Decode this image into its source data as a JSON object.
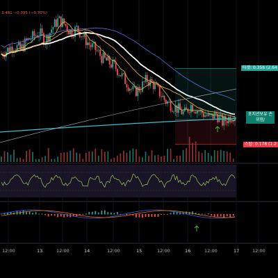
{
  "header": {
    "price_change": "3.481  −0.095 (−0.70%)"
  },
  "labels": {
    "target": "타겟: 0.356 (2.64",
    "position_line1": "포지션보유 손",
    "position_line2": "위험/",
    "stop": "스탑: 0.178 (1.2"
  },
  "colors": {
    "up": "#26a69a",
    "down": "#ef5350",
    "target": "#26a69a",
    "stop": "#f23645",
    "position": "#0e7e6f",
    "ma_white": "#ffffff",
    "ma_orange": "#e8a546",
    "ma_cyan": "#31c3d6",
    "ma_blue": "#5b6ee1",
    "ma_yellow": "#d7c93f",
    "background": "#000000"
  },
  "x_axis": {
    "ticks": [
      "12:00",
      "13",
      "12:00",
      "14",
      "12:00",
      "15",
      "12:00",
      "16",
      "12:00",
      "17",
      "12:00"
    ]
  },
  "chart_data": {
    "type": "candlestick",
    "series": [
      {
        "name": "price",
        "values": [
          0.39,
          0.4,
          0.41,
          0.4,
          0.42,
          0.43,
          0.44,
          0.42,
          0.45,
          0.47,
          0.46,
          0.44,
          0.45,
          0.43,
          0.41,
          0.4,
          0.38,
          0.37,
          0.36,
          0.34,
          0.32,
          0.3,
          0.31,
          0.33,
          0.32,
          0.3,
          0.28,
          0.27,
          0.26,
          0.25,
          0.27,
          0.26,
          0.25,
          0.24,
          0.25,
          0.23,
          0.24,
          0.25
        ]
      }
    ],
    "target": 0.356,
    "stop": 0.178,
    "indicators": [
      "MA",
      "RSI",
      "MACD"
    ]
  }
}
